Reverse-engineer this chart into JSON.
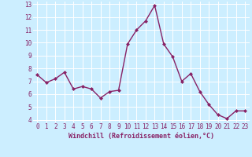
{
  "x": [
    0,
    1,
    2,
    3,
    4,
    5,
    6,
    7,
    8,
    9,
    10,
    11,
    12,
    13,
    14,
    15,
    16,
    17,
    18,
    19,
    20,
    21,
    22,
    23
  ],
  "y": [
    7.5,
    6.9,
    7.2,
    7.7,
    6.4,
    6.6,
    6.4,
    5.7,
    6.2,
    6.3,
    9.9,
    11.0,
    11.7,
    12.9,
    9.9,
    8.9,
    7.0,
    7.6,
    6.2,
    5.2,
    4.4,
    4.1,
    4.7,
    4.7
  ],
  "xlabel": "Windchill (Refroidissement éolien,°C)",
  "ylim": [
    4,
    13
  ],
  "xlim": [
    0,
    23
  ],
  "yticks": [
    4,
    5,
    6,
    7,
    8,
    9,
    10,
    11,
    12,
    13
  ],
  "xticks": [
    0,
    1,
    2,
    3,
    4,
    5,
    6,
    7,
    8,
    9,
    10,
    11,
    12,
    13,
    14,
    15,
    16,
    17,
    18,
    19,
    20,
    21,
    22,
    23
  ],
  "line_color": "#882266",
  "marker": "D",
  "marker_size": 2.0,
  "bg_color": "#cceeff",
  "grid_color": "#ffffff",
  "axis_label_color": "#882266",
  "tick_label_color": "#882266",
  "xlabel_fontsize": 6.0,
  "tick_fontsize": 5.5,
  "line_width": 1.0
}
